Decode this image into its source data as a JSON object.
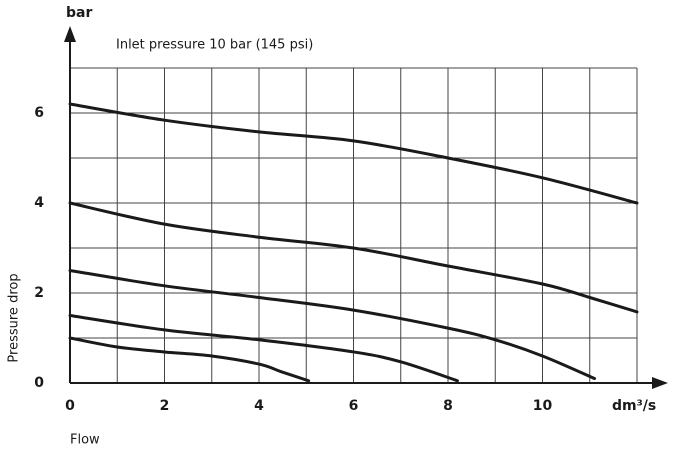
{
  "chart_data": {
    "type": "line",
    "title": "Inlet pressure 10 bar (145 psi)",
    "y_unit": "bar",
    "x_unit": "dm³/s",
    "ylabel": "Pressure drop",
    "xlabel": "Flow",
    "xlim": [
      0,
      12
    ],
    "ylim": [
      0,
      7
    ],
    "xticks": [
      0,
      2,
      4,
      6,
      8,
      10
    ],
    "yticks": [
      0,
      2,
      4,
      6
    ],
    "xgrid": [
      0,
      1,
      2,
      3,
      4,
      5,
      6,
      7,
      8,
      9,
      10,
      11,
      12
    ],
    "ygrid": [
      0,
      1,
      2,
      3,
      4,
      5,
      6,
      7
    ],
    "color": "#1a1a1a",
    "series": [
      {
        "x": [
          0,
          2,
          4,
          6,
          8,
          10,
          12
        ],
        "values": [
          6.2,
          5.84,
          5.58,
          5.38,
          5.0,
          4.56,
          4.0
        ]
      },
      {
        "x": [
          0,
          2,
          4,
          6,
          8,
          10,
          11,
          12
        ],
        "values": [
          4.0,
          3.53,
          3.24,
          3.0,
          2.6,
          2.2,
          1.9,
          1.58
        ]
      },
      {
        "x": [
          0,
          2,
          4,
          6,
          8,
          9,
          10,
          11.1
        ],
        "values": [
          2.5,
          2.16,
          1.9,
          1.62,
          1.22,
          0.96,
          0.6,
          0.1
        ]
      },
      {
        "x": [
          0,
          2,
          4,
          6,
          7,
          8.2
        ],
        "values": [
          1.5,
          1.18,
          0.96,
          0.69,
          0.47,
          0.05
        ]
      },
      {
        "x": [
          0,
          1,
          2,
          3,
          4,
          4.5,
          5.05
        ],
        "values": [
          1.0,
          0.8,
          0.69,
          0.6,
          0.42,
          0.24,
          0.05
        ]
      }
    ]
  }
}
